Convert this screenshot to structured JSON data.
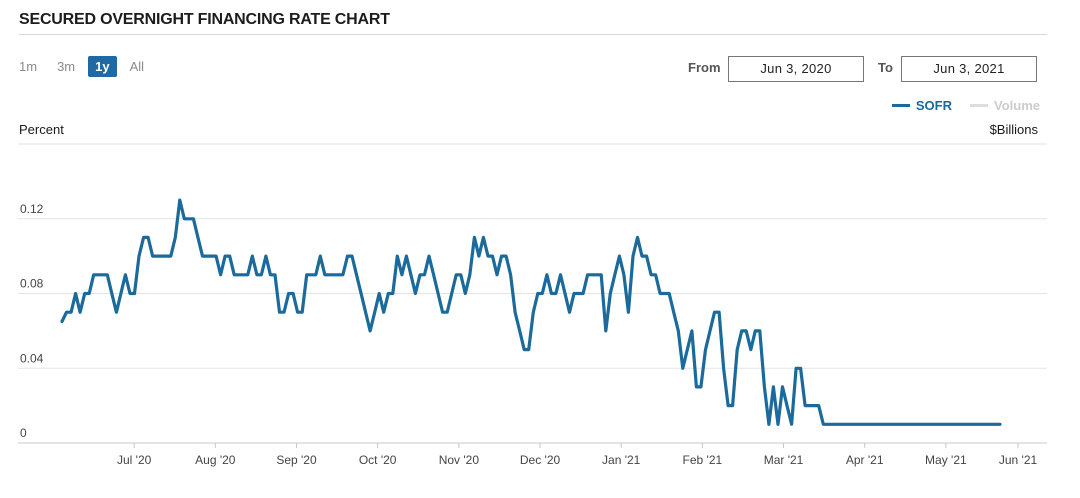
{
  "title": "SECURED OVERNIGHT FINANCING RATE CHART",
  "range_buttons": [
    {
      "label": "1m",
      "active": false
    },
    {
      "label": "3m",
      "active": false
    },
    {
      "label": "1y",
      "active": true
    },
    {
      "label": "All",
      "active": false
    }
  ],
  "date_range": {
    "from_label": "From",
    "from_value": "Jun 3, 2020",
    "to_label": "To",
    "to_value": "Jun 3, 2021"
  },
  "legend": [
    {
      "name": "SOFR",
      "color": "#1b6a9c",
      "enabled": true
    },
    {
      "name": "Volume",
      "color": "#cccccc",
      "enabled": false
    }
  ],
  "chart_data": {
    "type": "line",
    "ylabel": "Percent",
    "y2label": "$Billions",
    "ylim": [
      0,
      0.16
    ],
    "yticks": [
      0,
      0.04,
      0.08,
      0.12
    ],
    "ytick_labels": [
      "0",
      "0.04",
      "0.08",
      "0.12"
    ],
    "xlim": [
      0,
      52
    ],
    "xticks": [
      4,
      8.5,
      13,
      17.5,
      22,
      26.5,
      31,
      35.5,
      40,
      44.5,
      49,
      53
    ],
    "xtick_labels": [
      "Jul '20",
      "Aug '20",
      "Sep '20",
      "Oct '20",
      "Nov '20",
      "Dec '20",
      "Jan '21",
      "Feb '21",
      "Mar '21",
      "Apr '21",
      "May '21",
      "Jun '21"
    ],
    "grid": true,
    "line_color": "#1b6a9c",
    "series": [
      {
        "name": "SOFR",
        "values": [
          0.065,
          0.07,
          0.07,
          0.08,
          0.07,
          0.08,
          0.08,
          0.09,
          0.09,
          0.09,
          0.09,
          0.08,
          0.07,
          0.08,
          0.09,
          0.08,
          0.08,
          0.1,
          0.11,
          0.11,
          0.1,
          0.1,
          0.1,
          0.1,
          0.1,
          0.11,
          0.13,
          0.12,
          0.12,
          0.12,
          0.11,
          0.1,
          0.1,
          0.1,
          0.1,
          0.09,
          0.1,
          0.1,
          0.09,
          0.09,
          0.09,
          0.09,
          0.1,
          0.09,
          0.09,
          0.1,
          0.09,
          0.09,
          0.07,
          0.07,
          0.08,
          0.08,
          0.07,
          0.07,
          0.09,
          0.09,
          0.09,
          0.1,
          0.09,
          0.09,
          0.09,
          0.09,
          0.09,
          0.1,
          0.1,
          0.09,
          0.08,
          0.07,
          0.06,
          0.07,
          0.08,
          0.07,
          0.08,
          0.08,
          0.1,
          0.09,
          0.1,
          0.09,
          0.08,
          0.09,
          0.09,
          0.1,
          0.09,
          0.08,
          0.07,
          0.07,
          0.08,
          0.09,
          0.09,
          0.08,
          0.09,
          0.11,
          0.1,
          0.11,
          0.1,
          0.1,
          0.09,
          0.1,
          0.1,
          0.09,
          0.07,
          0.06,
          0.05,
          0.05,
          0.07,
          0.08,
          0.08,
          0.09,
          0.08,
          0.08,
          0.09,
          0.08,
          0.07,
          0.08,
          0.08,
          0.08,
          0.09,
          0.09,
          0.09,
          0.09,
          0.06,
          0.08,
          0.09,
          0.1,
          0.09,
          0.07,
          0.1,
          0.11,
          0.1,
          0.1,
          0.09,
          0.09,
          0.08,
          0.08,
          0.08,
          0.07,
          0.06,
          0.04,
          0.05,
          0.06,
          0.03,
          0.03,
          0.05,
          0.06,
          0.07,
          0.07,
          0.04,
          0.02,
          0.02,
          0.05,
          0.06,
          0.06,
          0.05,
          0.06,
          0.06,
          0.03,
          0.01,
          0.03,
          0.01,
          0.03,
          0.02,
          0.01,
          0.04,
          0.04,
          0.02,
          0.02,
          0.02,
          0.02,
          0.01,
          0.01,
          0.01,
          0.01,
          0.01,
          0.01,
          0.01,
          0.01,
          0.01,
          0.01,
          0.01,
          0.01,
          0.01,
          0.01,
          0.01,
          0.01,
          0.01,
          0.01,
          0.01,
          0.01,
          0.01,
          0.01,
          0.01,
          0.01,
          0.01,
          0.01,
          0.01,
          0.01,
          0.01,
          0.01,
          0.01,
          0.01,
          0.01,
          0.01,
          0.01,
          0.01,
          0.01,
          0.01,
          0.01,
          0.01
        ]
      }
    ]
  }
}
